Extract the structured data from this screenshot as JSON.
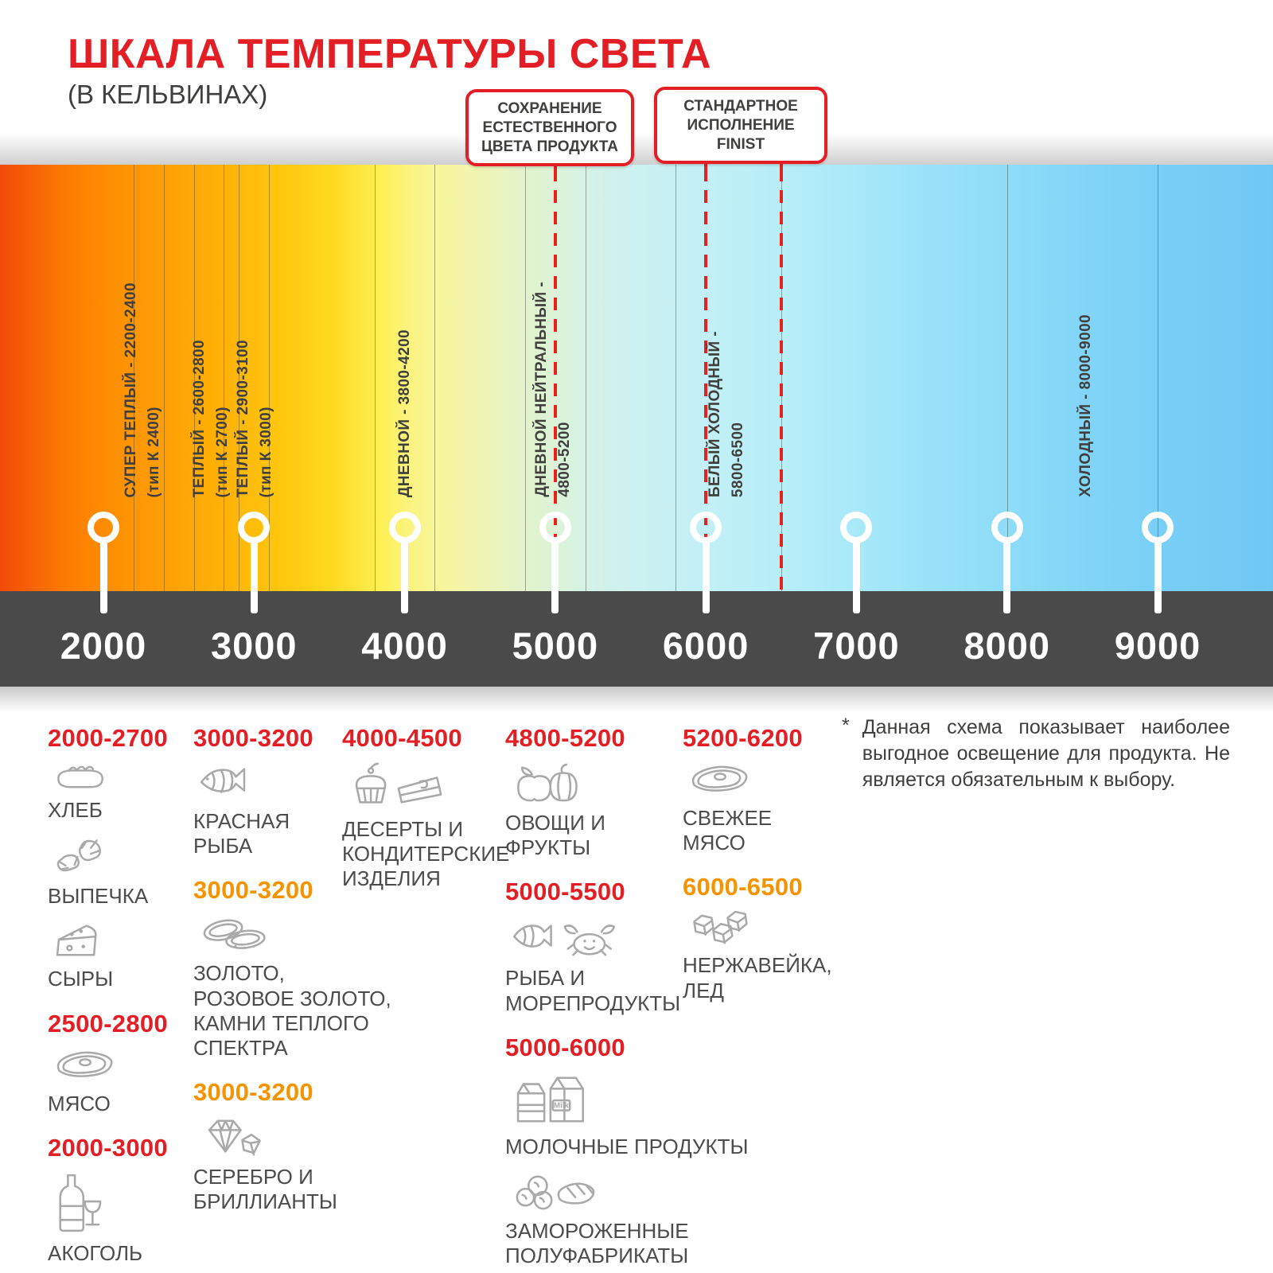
{
  "header": {
    "title": "ШКАЛА ТЕМПЕРАТУРЫ СВЕТА",
    "subtitle": "(В КЕЛЬВИНАХ)"
  },
  "callouts": [
    {
      "name": "natural-color",
      "lines": [
        "СОХРАНЕНИЕ",
        "ЕСТЕСТВЕННОГО",
        "ЦВЕТА ПРОДУКТА"
      ],
      "marker_kelvins": [
        5000
      ]
    },
    {
      "name": "finist-standard",
      "lines": [
        "СТАНДАРТНОЕ",
        "ИСПОЛНЕНИЕ",
        "FINIST"
      ],
      "marker_kelvins": [
        6000,
        6500
      ]
    }
  ],
  "scale": {
    "unit": "K",
    "min": 2000,
    "max": 9000,
    "axis_ticks": [
      "2000",
      "3000",
      "4000",
      "5000",
      "6000",
      "7000",
      "8000",
      "9000"
    ],
    "gridline_kelvins": [
      2200,
      2400,
      2600,
      2800,
      2900,
      3100,
      3800,
      4200,
      4800,
      5200,
      5800,
      6500,
      8000,
      9000
    ],
    "range_labels": [
      {
        "main": "СУПЕР ТЕПЛЫЙ  - 2200-2400",
        "sub": "(тип К 2400)"
      },
      {
        "main": "ТЕПЛЫЙ - 2600-2800",
        "sub": "(тип К 2700)"
      },
      {
        "main": "ТЕПЛЫЙ - 2900-3100",
        "sub": "(тип К 3000)"
      },
      {
        "main": "ДНЕВНОЙ - 3800-4200",
        "sub": ""
      },
      {
        "main": "ДНЕВНОЙ НЕЙТРАЛЬНЫЙ -",
        "sub": "4800-5200"
      },
      {
        "main": "БЕЛЫЙ ХОЛОДНЫЙ -",
        "sub": "5800-6500"
      },
      {
        "main": "ХОЛОДНЫЙ - 8000-9000",
        "sub": ""
      }
    ]
  },
  "categories": {
    "columns": [
      {
        "groups": [
          {
            "range": "2000-2700",
            "tone": "red",
            "items": [
              {
                "icon": "bread-icon",
                "label": "ХЛЕБ"
              },
              {
                "icon": "croissant-icon",
                "label": "ВЫПЕЧКА"
              },
              {
                "icon": "cheese-icon",
                "label": "СЫРЫ"
              }
            ]
          },
          {
            "range": "2500-2800",
            "tone": "red",
            "items": [
              {
                "icon": "meat-icon",
                "label": "МЯСО"
              }
            ]
          },
          {
            "range": "2000-3000",
            "tone": "red",
            "items": [
              {
                "icon": "alcohol-icon",
                "label": "АКОГОЛЬ"
              }
            ]
          }
        ]
      },
      {
        "groups": [
          {
            "range": "3000-3200",
            "tone": "red",
            "items": [
              {
                "icon": "fish-icon",
                "label": "КРАСНАЯ\nРЫБА"
              }
            ]
          },
          {
            "range": "3000-3200",
            "tone": "orange",
            "items": [
              {
                "icon": "rings-icon",
                "label": "ЗОЛОТО,\nРОЗОВОЕ ЗОЛОТО,\nКАМНИ ТЕПЛОГО\nСПЕКТРА"
              }
            ]
          },
          {
            "range": "3000-3200",
            "tone": "orange",
            "items": [
              {
                "icon": "diamonds-icon",
                "label": "СЕРЕБРО И\nБРИЛЛИАНТЫ"
              }
            ]
          }
        ]
      },
      {
        "groups": [
          {
            "range": "4000-4500",
            "tone": "red",
            "items": [
              {
                "icon": "desserts-icon",
                "label": "ДЕСЕРТЫ И\nКОНДИТЕРСКИЕ\nИЗДЕЛИЯ"
              }
            ]
          }
        ]
      },
      {
        "groups": [
          {
            "range": "4800-5200",
            "tone": "red",
            "items": [
              {
                "icon": "fruits-vegetables-icon",
                "label": "ОВОЩИ И\nФРУКТЫ"
              }
            ]
          },
          {
            "range": "5000-5500",
            "tone": "red",
            "items": [
              {
                "icon": "seafood-icon",
                "label": "РЫБА И\nМОРЕПРОДУКТЫ"
              }
            ]
          },
          {
            "range": "5000-6000",
            "tone": "red",
            "items": [
              {
                "icon": "dairy-icon",
                "label": "МОЛОЧНЫЕ ПРОДУКТЫ",
                "icon_text": "Milk"
              },
              {
                "icon": "frozen-icon",
                "label": "ЗАМОРОЖЕННЫЕ\nПОЛУФАБРИКАТЫ"
              }
            ]
          }
        ]
      },
      {
        "groups": [
          {
            "range": "5200-6200",
            "tone": "red",
            "items": [
              {
                "icon": "fresh-meat-icon",
                "label": "СВЕЖЕЕ\nМЯСО"
              }
            ]
          },
          {
            "range": "6000-6500",
            "tone": "orange",
            "items": [
              {
                "icon": "ice-icon",
                "label": "НЕРЖАВЕЙКА,\nЛЕД"
              }
            ]
          }
        ]
      }
    ]
  },
  "note": {
    "marker": "*",
    "text": "Данная схема показывает наиболее выгодное освещение для продукта. Не является обязательным к выбору."
  },
  "colors": {
    "accent_red": "#e31e24",
    "accent_orange": "#f59300",
    "axis_bar": "#4a4a4a",
    "text_dark": "#3f3f3e",
    "icon_gray": "#a9a9a9",
    "guide_red": "#e8211d",
    "marker_white": "#ffffff"
  }
}
